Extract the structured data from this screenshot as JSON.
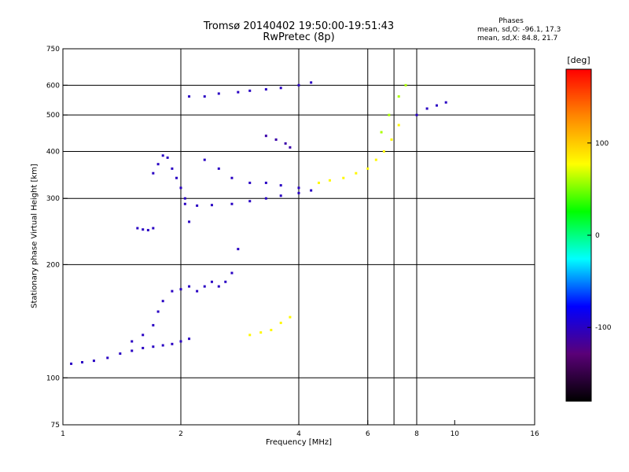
{
  "chart_data": {
    "type": "scatter",
    "title": "Tromsø 20140402 19:50:00-19:51:43",
    "subtitle": "RwPretec (8p)",
    "stats": {
      "heading": "Phases",
      "line_o": "mean, sd,O: -96.1, 17.3",
      "line_x": "mean, sd,X:  84.8, 21.7"
    },
    "xlabel": "Frequency [MHz]",
    "ylabel": "Stationary phase Virtual Height [km]",
    "xscale": "log",
    "yscale": "log",
    "xlim": [
      1,
      16
    ],
    "ylim": [
      75,
      750
    ],
    "x_ticks": [
      "1",
      "2",
      "4",
      "6",
      "8",
      "10",
      "16"
    ],
    "x_tick_values": [
      1,
      2,
      4,
      6,
      8,
      10,
      16
    ],
    "x_gridlines": [
      2,
      4,
      6,
      7,
      8
    ],
    "y_ticks": [
      "750",
      "600",
      "500",
      "400",
      "300",
      "200",
      "100",
      "75"
    ],
    "y_tick_values": [
      750,
      600,
      500,
      400,
      300,
      200,
      100,
      75
    ],
    "y_gridlines": [
      600,
      500,
      400,
      300,
      200,
      100
    ],
    "grid": true,
    "colorbar": {
      "unit": "[deg]",
      "range": [
        -180,
        180
      ],
      "ticks": [
        "100",
        "0",
        "-100"
      ],
      "tick_values": [
        100,
        0,
        -100
      ],
      "colors": [
        "#000000",
        "#5a0078",
        "#0000ff",
        "#00ffff",
        "#00ff00",
        "#ffff00",
        "#ff8800",
        "#ff0000"
      ]
    },
    "series": [
      {
        "values": [
          [
            1.05,
            109
          ],
          [
            1.12,
            110
          ],
          [
            1.2,
            111
          ],
          [
            1.3,
            113
          ],
          [
            1.4,
            116
          ],
          [
            1.5,
            118
          ],
          [
            1.6,
            120
          ],
          [
            1.7,
            121
          ],
          [
            1.8,
            122
          ],
          [
            1.9,
            123
          ],
          [
            2.0,
            125
          ],
          [
            2.1,
            127
          ]
        ],
        "phase": -100
      },
      {
        "values": [
          [
            1.5,
            125
          ],
          [
            1.6,
            130
          ],
          [
            1.7,
            138
          ],
          [
            1.75,
            150
          ],
          [
            1.8,
            160
          ],
          [
            1.9,
            170
          ],
          [
            2.0,
            172
          ],
          [
            2.1,
            175
          ],
          [
            2.2,
            170
          ],
          [
            2.3,
            175
          ],
          [
            2.4,
            180
          ],
          [
            2.5,
            175
          ],
          [
            2.6,
            180
          ],
          [
            2.7,
            190
          ],
          [
            2.8,
            220
          ]
        ],
        "phase": -100
      },
      {
        "values": [
          [
            1.7,
            350
          ],
          [
            1.75,
            370
          ],
          [
            1.8,
            390
          ],
          [
            1.85,
            385
          ],
          [
            1.9,
            360
          ],
          [
            1.95,
            340
          ],
          [
            2.0,
            320
          ],
          [
            2.05,
            300
          ],
          [
            2.1,
            260
          ]
        ],
        "phase": -100
      },
      {
        "values": [
          [
            1.55,
            250
          ],
          [
            1.6,
            248
          ],
          [
            1.65,
            247
          ],
          [
            1.7,
            250
          ]
        ],
        "phase": -100
      },
      {
        "values": [
          [
            2.05,
            290
          ],
          [
            2.2,
            287
          ],
          [
            2.4,
            288
          ],
          [
            2.7,
            290
          ],
          [
            3.0,
            295
          ],
          [
            3.3,
            300
          ],
          [
            3.6,
            305
          ],
          [
            4.0,
            310
          ],
          [
            4.3,
            315
          ]
        ],
        "phase": -100
      },
      {
        "values": [
          [
            2.3,
            380
          ],
          [
            2.5,
            360
          ],
          [
            2.7,
            340
          ],
          [
            3.0,
            330
          ],
          [
            3.3,
            330
          ],
          [
            3.6,
            325
          ],
          [
            4.0,
            320
          ]
        ],
        "phase": -100
      },
      {
        "values": [
          [
            3.3,
            440
          ],
          [
            3.5,
            430
          ],
          [
            3.7,
            420
          ],
          [
            3.8,
            410
          ]
        ],
        "phase": -110
      },
      {
        "values": [
          [
            2.1,
            560
          ],
          [
            2.3,
            560
          ],
          [
            2.5,
            570
          ],
          [
            2.8,
            575
          ],
          [
            3.0,
            580
          ],
          [
            3.3,
            585
          ],
          [
            3.6,
            590
          ],
          [
            4.0,
            600
          ],
          [
            4.3,
            610
          ]
        ],
        "phase": -100
      },
      {
        "values": [
          [
            3.0,
            130
          ],
          [
            3.2,
            132
          ],
          [
            3.4,
            134
          ],
          [
            3.6,
            140
          ],
          [
            3.8,
            145
          ]
        ],
        "phase": 80
      },
      {
        "values": [
          [
            4.5,
            330
          ],
          [
            4.8,
            335
          ],
          [
            5.2,
            340
          ],
          [
            5.6,
            350
          ],
          [
            6.0,
            360
          ],
          [
            6.3,
            380
          ],
          [
            6.6,
            400
          ],
          [
            6.9,
            430
          ],
          [
            7.2,
            470
          ]
        ],
        "phase": 80
      },
      {
        "values": [
          [
            6.5,
            450
          ],
          [
            6.8,
            500
          ],
          [
            7.2,
            560
          ],
          [
            7.5,
            600
          ]
        ],
        "phase": 60
      },
      {
        "values": [
          [
            8.0,
            500
          ],
          [
            8.5,
            520
          ],
          [
            9.0,
            530
          ],
          [
            9.5,
            540
          ]
        ],
        "phase": -100
      }
    ]
  }
}
